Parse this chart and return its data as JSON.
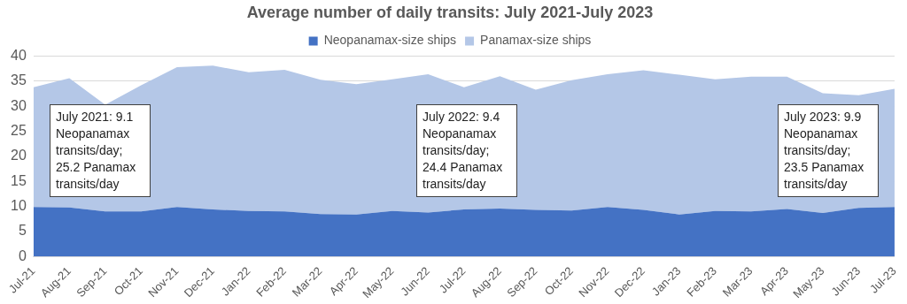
{
  "chart_data": {
    "type": "area",
    "title": "Average number of daily transits: July 2021-July 2023",
    "stacked": true,
    "categories": [
      "Jul-21",
      "Aug-21",
      "Sep-21",
      "Oct-21",
      "Nov-21",
      "Dec-21",
      "Jan-22",
      "Feb-22",
      "Mar-22",
      "Apr-22",
      "May-22",
      "Jun-22",
      "Jul-22",
      "Aug-22",
      "Sep-22",
      "Oct-22",
      "Nov-22",
      "Dec-22",
      "Jan-23",
      "Feb-23",
      "Mar-23",
      "Apr-23",
      "May-23",
      "Jun-23",
      "Jul-23"
    ],
    "series": [
      {
        "name": "Neopanamax-size ships",
        "color": "#4472c4",
        "values": [
          9.9,
          9.8,
          9.0,
          9.0,
          9.9,
          9.4,
          9.1,
          9.0,
          8.5,
          8.4,
          9.1,
          8.8,
          9.4,
          9.6,
          9.3,
          9.2,
          9.9,
          9.3,
          8.4,
          9.1,
          9.0,
          9.5,
          8.7,
          9.7,
          9.9
        ]
      },
      {
        "name": "Panamax-size ships",
        "color": "#b4c7e7",
        "values": [
          23.9,
          25.8,
          21.3,
          25.2,
          27.9,
          28.7,
          27.7,
          28.3,
          26.8,
          26.0,
          26.3,
          27.6,
          24.4,
          26.4,
          24.0,
          26.0,
          26.5,
          27.9,
          27.9,
          26.3,
          26.9,
          26.4,
          23.9,
          22.5,
          23.6
        ]
      }
    ],
    "ylim": [
      0,
      40
    ],
    "yticks": [
      0,
      5,
      10,
      15,
      20,
      25,
      30,
      35,
      40
    ],
    "grid": "y",
    "legend": "top",
    "annotations": [
      "July 2021: 9.1 Neopanamax transits/day; 25.2 Panamax transits/day",
      "July 2022: 9.4 Neopanamax transits/day; 24.4 Panamax transits/day",
      "July 2023: 9.9 Neopanamax transits/day; 23.5 Panamax transits/day"
    ]
  }
}
